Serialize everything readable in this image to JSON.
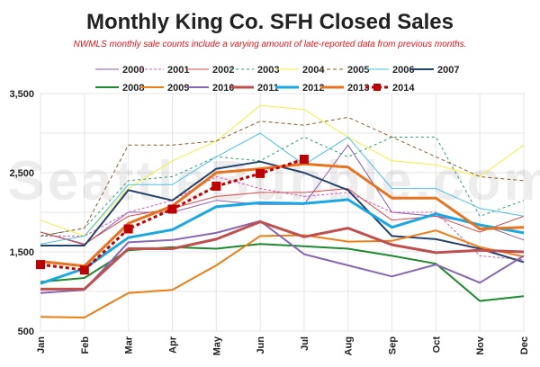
{
  "chart_data": {
    "type": "line",
    "title": "Monthly King Co. SFH Closed Sales",
    "subtitle": "NWMLS monthly sale counts include a varying amount of late-reported  data from previous months.",
    "watermark": "SeattleBubble.com",
    "categories": [
      "Jan",
      "Feb",
      "Mar",
      "Apr",
      "May",
      "Jun",
      "Jul",
      "Aug",
      "Sep",
      "Oct",
      "Nov",
      "Dec"
    ],
    "y_ticks": [
      "3,500",
      "2,500",
      "1,500",
      "500"
    ],
    "ylim": [
      500,
      3500
    ],
    "grid": true,
    "legend_position": "top",
    "series": [
      {
        "name": "2000",
        "color": "#8a5aa6",
        "dash": "",
        "width": 1,
        "values": [
          1750,
          1590,
          2000,
          2000,
          2150,
          2100,
          2100,
          2850,
          2000,
          1950,
          1850,
          1650
        ]
      },
      {
        "name": "2001",
        "color": "#d45ab8",
        "dash": "3,2",
        "width": 1,
        "values": [
          1700,
          1700,
          2000,
          2150,
          2450,
          2300,
          2200,
          2250,
          2000,
          2000,
          1450,
          1400
        ]
      },
      {
        "name": "2002",
        "color": "#d94a4a",
        "dash": "",
        "width": 1,
        "values": [
          1750,
          1600,
          1950,
          2050,
          2200,
          2250,
          2250,
          2300,
          1900,
          1950,
          1750,
          1950
        ]
      },
      {
        "name": "2003",
        "color": "#2aa36b",
        "dash": "3,3",
        "width": 1,
        "values": [
          1700,
          1800,
          2400,
          2450,
          2700,
          2650,
          2950,
          2700,
          2950,
          2950,
          1950,
          2150
        ]
      },
      {
        "name": "2004",
        "color": "#f3ee3c",
        "dash": "",
        "width": 1,
        "values": [
          1900,
          1700,
          2300,
          2650,
          2900,
          3350,
          3300,
          2950,
          2650,
          2600,
          2450,
          2850
        ]
      },
      {
        "name": "2005",
        "color": "#8c5a2b",
        "dash": "4,3",
        "width": 1,
        "values": [
          1700,
          1800,
          2850,
          2850,
          2900,
          3150,
          3100,
          3200,
          2950,
          2700,
          2450,
          2400
        ]
      },
      {
        "name": "2006",
        "color": "#4ac1e4",
        "dash": "",
        "width": 1,
        "values": [
          1600,
          1700,
          2350,
          2350,
          2700,
          3000,
          2600,
          2950,
          2300,
          2300,
          2050,
          1950
        ]
      },
      {
        "name": "2007",
        "color": "#24426e",
        "dash": "",
        "width": 2,
        "values": [
          1580,
          1580,
          2280,
          2150,
          2550,
          2640,
          2500,
          2280,
          1700,
          1660,
          1540,
          1370
        ]
      },
      {
        "name": "2008",
        "color": "#1e8a2e",
        "dash": "",
        "width": 2,
        "values": [
          1120,
          1170,
          1520,
          1560,
          1540,
          1600,
          1570,
          1540,
          1450,
          1350,
          880,
          940
        ]
      },
      {
        "name": "2009",
        "color": "#ee7d14",
        "dash": "",
        "width": 2,
        "values": [
          680,
          670,
          980,
          1020,
          1330,
          1700,
          1710,
          1630,
          1640,
          1770,
          1560,
          1440
        ]
      },
      {
        "name": "2010",
        "color": "#8866b5",
        "dash": "",
        "width": 2,
        "values": [
          980,
          1020,
          1620,
          1650,
          1740,
          1890,
          1470,
          1330,
          1190,
          1340,
          1110,
          1450
        ]
      },
      {
        "name": "2011",
        "color": "#c0504d",
        "dash": "",
        "width": 3,
        "values": [
          1030,
          1030,
          1540,
          1540,
          1660,
          1880,
          1690,
          1800,
          1590,
          1490,
          1520,
          1500
        ]
      },
      {
        "name": "2012",
        "color": "#1aa8e4",
        "dash": "",
        "width": 3,
        "values": [
          1100,
          1290,
          1680,
          1780,
          2070,
          2120,
          2110,
          2160,
          1810,
          1980,
          1840,
          1740
        ]
      },
      {
        "name": "2013",
        "color": "#e8731e",
        "dash": "",
        "width": 3,
        "values": [
          1380,
          1320,
          1860,
          2080,
          2500,
          2550,
          2610,
          2570,
          2180,
          2180,
          1790,
          1810
        ]
      },
      {
        "name": "2014",
        "color": "#c00000",
        "dash": "4,3",
        "width": 3,
        "values": [
          1340,
          1270,
          1790,
          2040,
          2330,
          2490,
          2670,
          null,
          null,
          null,
          null,
          null
        ]
      }
    ]
  }
}
